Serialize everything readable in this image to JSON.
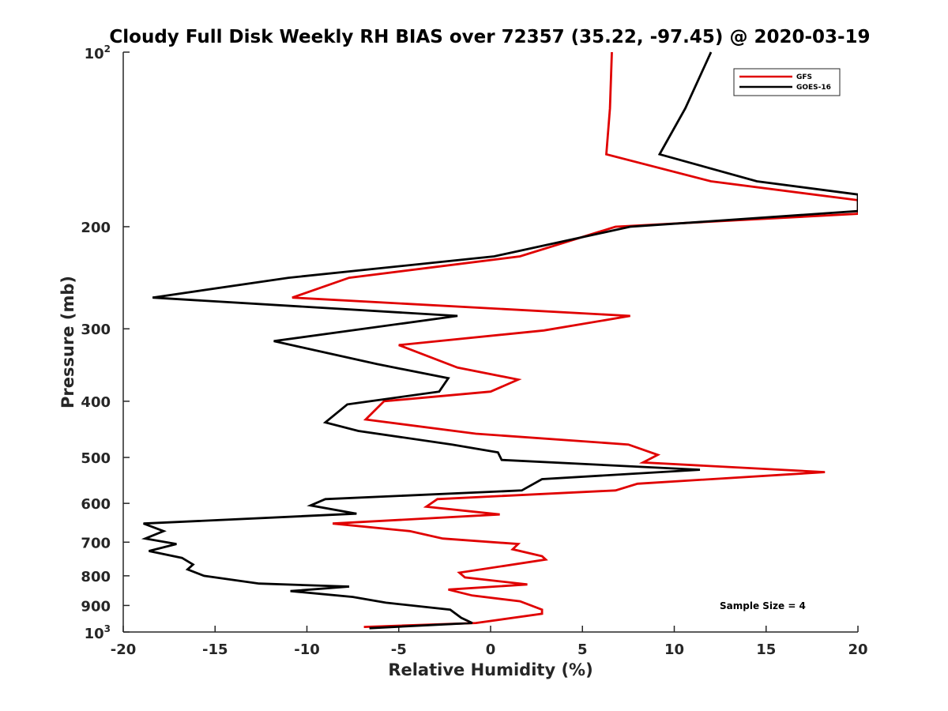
{
  "colors": {
    "gfs": "#e00000",
    "goes16": "#000000",
    "axis": "#262626"
  },
  "chart_data": {
    "type": "line",
    "title": "Cloudy Full Disk Weekly RH BIAS over 72357 (35.22, -97.45) @ 2020-03-19",
    "xlabel": "Relative Humidity (%)",
    "ylabel": "Pressure (mb)",
    "xlim": [
      -20,
      20
    ],
    "ylim": [
      100,
      1000
    ],
    "y_scale": "log",
    "y_reversed": true,
    "grid": false,
    "legend_position": "top-right",
    "x_ticks": [
      "-20",
      "-15",
      "-10",
      "-5",
      "0",
      "5",
      "10",
      "15",
      "20"
    ],
    "y_ticks_plain": [
      "200",
      "300",
      "400",
      "500",
      "600",
      "700",
      "800",
      "900"
    ],
    "y_tick_top": {
      "base": "10",
      "exp": "2"
    },
    "y_tick_bottom": {
      "base": "10",
      "exp": "3"
    },
    "annotation": "Sample Size = 4",
    "series": [
      {
        "name": "GFS",
        "color": "#e00000",
        "points": [
          [
            6.6,
            100
          ],
          [
            6.5,
            125
          ],
          [
            6.3,
            150
          ],
          [
            12.0,
            167
          ],
          [
            20.0,
            180
          ],
          [
            20.0,
            190
          ],
          [
            6.8,
            200
          ],
          [
            1.6,
            225
          ],
          [
            -7.7,
            245
          ],
          [
            -10.8,
            265
          ],
          [
            7.6,
            285
          ],
          [
            2.9,
            302
          ],
          [
            -5.0,
            320
          ],
          [
            -1.8,
            350
          ],
          [
            1.5,
            367
          ],
          [
            0.0,
            385
          ],
          [
            -5.8,
            400
          ],
          [
            -6.8,
            430
          ],
          [
            -0.8,
            455
          ],
          [
            7.5,
            475
          ],
          [
            9.1,
            495
          ],
          [
            8.3,
            510
          ],
          [
            18.2,
            530
          ],
          [
            8.0,
            555
          ],
          [
            6.8,
            570
          ],
          [
            -2.9,
            590
          ],
          [
            -3.5,
            608
          ],
          [
            0.5,
            627
          ],
          [
            -8.6,
            650
          ],
          [
            -4.4,
            670
          ],
          [
            -2.6,
            690
          ],
          [
            1.5,
            705
          ],
          [
            1.2,
            720
          ],
          [
            2.8,
            740
          ],
          [
            3.0,
            750
          ],
          [
            -1.7,
            790
          ],
          [
            -1.4,
            805
          ],
          [
            2.0,
            828
          ],
          [
            -2.3,
            845
          ],
          [
            -1.0,
            865
          ],
          [
            1.6,
            885
          ],
          [
            2.8,
            915
          ],
          [
            2.8,
            930
          ],
          [
            -0.8,
            965
          ],
          [
            -6.9,
            980
          ]
        ]
      },
      {
        "name": "GOES-16",
        "color": "#000000",
        "points": [
          [
            12.0,
            100
          ],
          [
            10.6,
            125
          ],
          [
            9.2,
            150
          ],
          [
            14.5,
            167
          ],
          [
            20.0,
            176
          ],
          [
            20.0,
            188
          ],
          [
            7.6,
            200
          ],
          [
            0.2,
            225
          ],
          [
            -11.0,
            245
          ],
          [
            -18.4,
            265
          ],
          [
            -1.8,
            285
          ],
          [
            -11.8,
            315
          ],
          [
            -6.2,
            345
          ],
          [
            -2.3,
            365
          ],
          [
            -2.8,
            385
          ],
          [
            -7.8,
            405
          ],
          [
            -9.0,
            435
          ],
          [
            -7.2,
            450
          ],
          [
            -2.1,
            475
          ],
          [
            0.4,
            490
          ],
          [
            0.6,
            505
          ],
          [
            11.4,
            525
          ],
          [
            2.8,
            545
          ],
          [
            1.7,
            570
          ],
          [
            -9.0,
            590
          ],
          [
            -9.8,
            605
          ],
          [
            -7.3,
            625
          ],
          [
            -18.9,
            650
          ],
          [
            -17.8,
            670
          ],
          [
            -18.8,
            690
          ],
          [
            -17.1,
            705
          ],
          [
            -18.6,
            725
          ],
          [
            -16.8,
            745
          ],
          [
            -16.2,
            765
          ],
          [
            -16.5,
            780
          ],
          [
            -15.6,
            800
          ],
          [
            -12.6,
            825
          ],
          [
            -7.7,
            835
          ],
          [
            -10.9,
            850
          ],
          [
            -7.5,
            870
          ],
          [
            -5.7,
            890
          ],
          [
            -2.2,
            915
          ],
          [
            -1.6,
            945
          ],
          [
            -1.0,
            965
          ],
          [
            -6.6,
            985
          ]
        ]
      }
    ]
  }
}
